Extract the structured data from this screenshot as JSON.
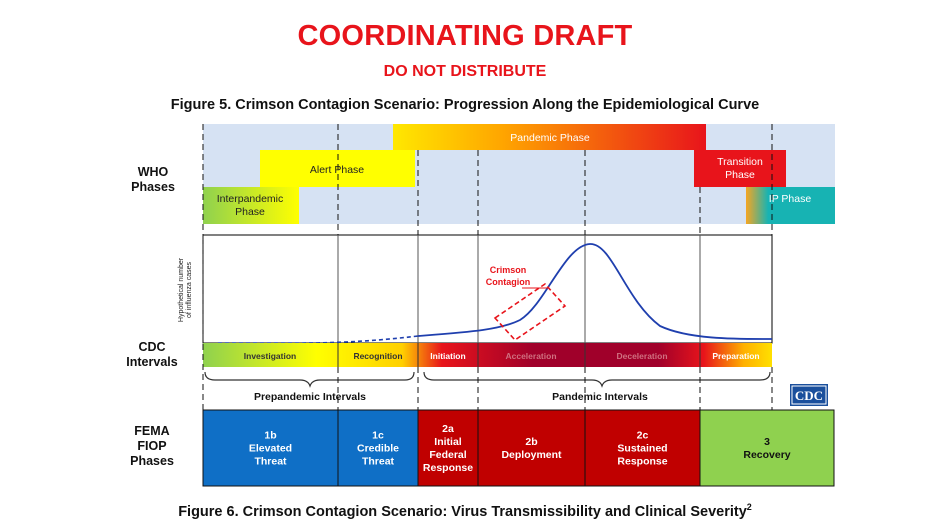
{
  "header": {
    "title": "COORDINATING DRAFT",
    "subtitle": "DO NOT DISTRIBUTE"
  },
  "figure5_caption": "Figure 5. Crimson Contagion Scenario: Progression Along the Epidemiological Curve",
  "figure6_caption": "Figure 6. Crimson Contagion Scenario: Virus Transmissibility and Clinical Severity",
  "figure6_superscript": "2",
  "who": {
    "label_line1": "WHO",
    "label_line2": "Phases",
    "pandemic": "Pandemic Phase",
    "alert": "Alert Phase",
    "interpandemic_line1": "Interpandemic",
    "interpandemic_line2": "Phase",
    "transition_line1": "Transition",
    "transition_line2": "Phase",
    "ip": "IP Phase"
  },
  "curve": {
    "yaxis_line1": "Hypothetical number",
    "yaxis_line2": "of influenza cases",
    "annotation_line1": "Crimson",
    "annotation_line2": "Contagion"
  },
  "cdc": {
    "label_line1": "CDC",
    "label_line2": "Intervals",
    "intervals": [
      "Investigation",
      "Recognition",
      "Initiation",
      "Acceleration",
      "Deceleration",
      "Preparation"
    ],
    "prepandemic": "Prepandemic Intervals",
    "pandemic": "Pandemic Intervals",
    "logo": "CDC"
  },
  "fema": {
    "label_line1": "FEMA",
    "label_line2": "FIOP",
    "label_line3": "Phases",
    "phases": [
      {
        "lines": [
          "1b",
          "Elevated",
          "Threat"
        ],
        "color": "#0f6fc6"
      },
      {
        "lines": [
          "1c",
          "Credible",
          "Threat"
        ],
        "color": "#0f6fc6"
      },
      {
        "lines": [
          "2a",
          "Initial",
          "Federal",
          "Response"
        ],
        "color": "#c00000"
      },
      {
        "lines": [
          "2b",
          "Deployment"
        ],
        "color": "#c00000"
      },
      {
        "lines": [
          "2c",
          "Sustained",
          "Response"
        ],
        "color": "#c00000"
      },
      {
        "lines": [
          "3",
          "Recovery"
        ],
        "color": "#8fd14f"
      }
    ]
  },
  "colors": {
    "draft_red": "#e8141b",
    "who_bg": "#d6e2f3",
    "alert_yellow": "#ffff00",
    "transition_red": "#e8141b",
    "ip_teal": "#17b3b3",
    "curve_blue": "#1f3fae",
    "annotation_red": "#e8141b"
  }
}
